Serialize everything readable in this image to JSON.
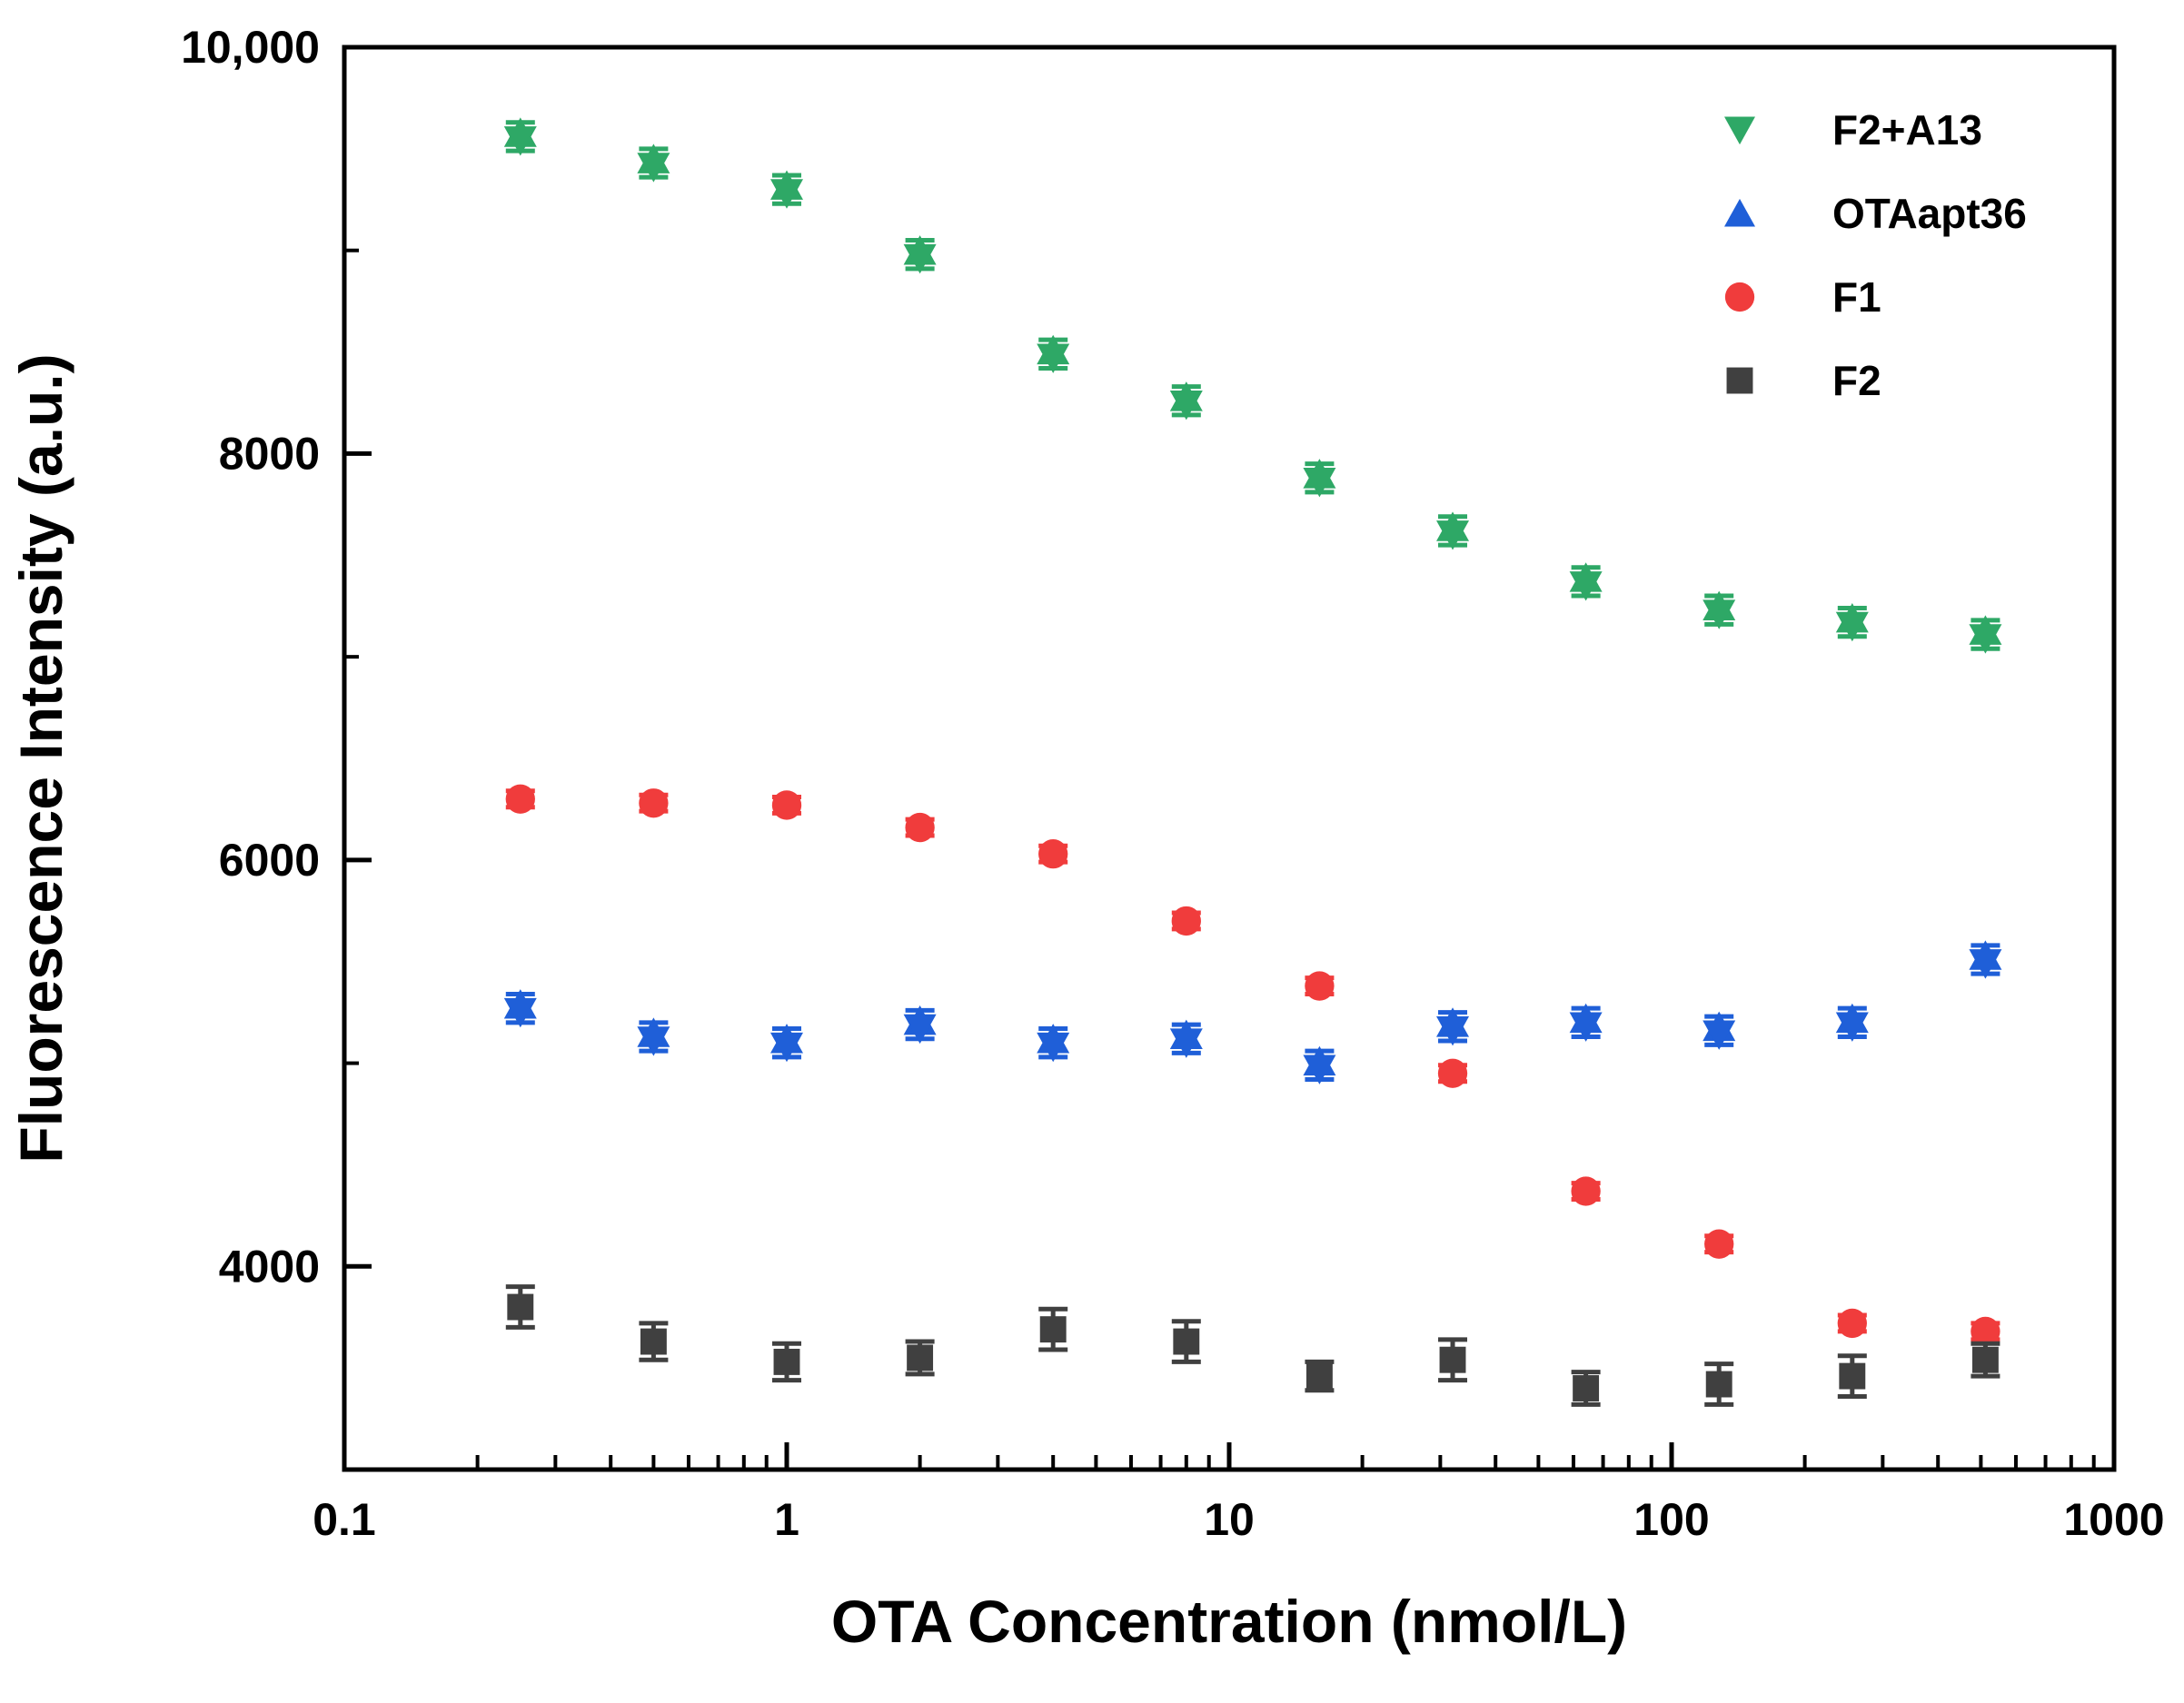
{
  "chart_data": {
    "type": "scatter",
    "xscale": "log",
    "xlabel": "OTA Concentration (nmol/L)",
    "ylabel": "Fluorescence Intensity (a.u.)",
    "xlim": [
      0.1,
      1000
    ],
    "ylim": [
      3000,
      10000
    ],
    "xticks": [
      0.1,
      1,
      10,
      100,
      1000
    ],
    "xtick_labels": [
      "0.1",
      "1",
      "10",
      "100",
      "1000"
    ],
    "yticks": [
      4000,
      6000,
      8000,
      10000
    ],
    "ytick_labels": [
      "4000",
      "6000",
      "8000",
      "10,000"
    ],
    "legend_position": "top-right",
    "x": [
      0.25,
      0.5,
      1,
      2,
      4,
      8,
      16,
      32,
      64,
      128,
      256,
      512
    ],
    "series": [
      {
        "name": "F2+A13",
        "marker": "triangle-down",
        "color": "#2ea866",
        "values": [
          9560,
          9430,
          9300,
          8980,
          8490,
          8260,
          7880,
          7620,
          7370,
          7230,
          7170,
          7110
        ],
        "errors": [
          70,
          70,
          70,
          70,
          70,
          70,
          70,
          70,
          70,
          70,
          70,
          70
        ]
      },
      {
        "name": "OTAapt36",
        "marker": "triangle-up",
        "color": "#1f5fd8",
        "values": [
          5270,
          5130,
          5100,
          5190,
          5100,
          5120,
          4990,
          5180,
          5200,
          5160,
          5200,
          5510
        ],
        "errors": [
          70,
          70,
          70,
          70,
          70,
          70,
          70,
          70,
          70,
          70,
          70,
          70
        ]
      },
      {
        "name": "F1",
        "marker": "circle",
        "color": "#f03c3c",
        "values": [
          6300,
          6280,
          6270,
          6160,
          6030,
          5700,
          5380,
          4950,
          4370,
          4110,
          3720,
          3680
        ],
        "errors": [
          40,
          40,
          40,
          40,
          40,
          40,
          40,
          40,
          40,
          40,
          40,
          40
        ]
      },
      {
        "name": "F2",
        "marker": "square",
        "color": "#404040",
        "values": [
          3800,
          3630,
          3530,
          3550,
          3690,
          3630,
          3460,
          3540,
          3400,
          3420,
          3460,
          3540
        ],
        "errors": [
          100,
          90,
          90,
          80,
          100,
          100,
          70,
          100,
          80,
          100,
          100,
          80
        ]
      }
    ]
  }
}
